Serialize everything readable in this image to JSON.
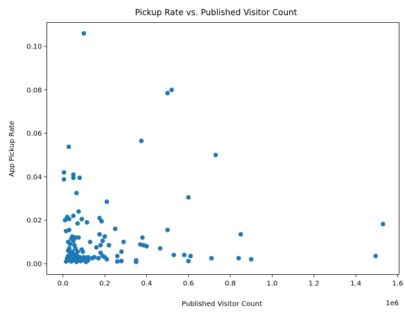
{
  "chart_data": {
    "type": "scatter",
    "title": "Pickup Rate vs. Published Visitor Count",
    "xlabel": "Published Visitor Count",
    "ylabel": "App Pickup Rate",
    "x_offset_label": "1e6",
    "xlim": [
      -0.077,
      1.607
    ],
    "ylim": [
      -0.005,
      0.111
    ],
    "xticks": [
      "0.0",
      "0.2",
      "0.4",
      "0.6",
      "0.8",
      "1.0",
      "1.2",
      "1.4",
      "1.6"
    ],
    "xtick_values": [
      0.0,
      0.2,
      0.4,
      0.6,
      0.8,
      1.0,
      1.2,
      1.4,
      1.6
    ],
    "yticks": [
      "0.00",
      "0.02",
      "0.04",
      "0.06",
      "0.08",
      "0.10"
    ],
    "ytick_values": [
      0.0,
      0.02,
      0.04,
      0.06,
      0.08,
      0.1
    ],
    "grid": false,
    "marker_color": "#1f77b4",
    "series": [
      {
        "points": [
          [
            0.1,
            0.106
          ],
          [
            0.5,
            0.0785
          ],
          [
            0.52,
            0.08
          ],
          [
            0.375,
            0.0565
          ],
          [
            0.028,
            0.0538
          ],
          [
            0.73,
            0.05
          ],
          [
            0.005,
            0.042
          ],
          [
            0.05,
            0.041
          ],
          [
            0.005,
            0.0388
          ],
          [
            0.05,
            0.0395
          ],
          [
            0.08,
            0.0395
          ],
          [
            0.065,
            0.0325
          ],
          [
            0.6,
            0.0305
          ],
          [
            0.21,
            0.0285
          ],
          [
            0.075,
            0.024
          ],
          [
            0.05,
            0.022
          ],
          [
            0.02,
            0.0215
          ],
          [
            0.01,
            0.02
          ],
          [
            0.03,
            0.0205
          ],
          [
            0.09,
            0.0205
          ],
          [
            0.175,
            0.021
          ],
          [
            0.185,
            0.0195
          ],
          [
            0.115,
            0.019
          ],
          [
            0.07,
            0.0185
          ],
          [
            1.53,
            0.0182
          ],
          [
            0.25,
            0.016
          ],
          [
            0.03,
            0.0155
          ],
          [
            0.5,
            0.0155
          ],
          [
            0.015,
            0.015
          ],
          [
            0.175,
            0.0135
          ],
          [
            0.85,
            0.0135
          ],
          [
            0.045,
            0.0125
          ],
          [
            0.06,
            0.012
          ],
          [
            0.075,
            0.012
          ],
          [
            0.38,
            0.012
          ],
          [
            0.04,
            0.0115
          ],
          [
            0.2,
            0.0125
          ],
          [
            0.025,
            0.01
          ],
          [
            0.05,
            0.0105
          ],
          [
            0.13,
            0.01
          ],
          [
            0.19,
            0.0105
          ],
          [
            0.29,
            0.01
          ],
          [
            0.035,
            0.009
          ],
          [
            0.055,
            0.0085
          ],
          [
            0.18,
            0.0085
          ],
          [
            0.22,
            0.0085
          ],
          [
            0.37,
            0.0088
          ],
          [
            0.385,
            0.0085
          ],
          [
            0.4,
            0.008
          ],
          [
            0.03,
            0.007
          ],
          [
            0.06,
            0.007
          ],
          [
            0.09,
            0.0065
          ],
          [
            0.16,
            0.0075
          ],
          [
            0.465,
            0.007
          ],
          [
            0.025,
            0.006
          ],
          [
            0.045,
            0.0055
          ],
          [
            0.07,
            0.0055
          ],
          [
            0.095,
            0.0055
          ],
          [
            0.28,
            0.0055
          ],
          [
            0.18,
            0.005
          ],
          [
            0.035,
            0.005
          ],
          [
            0.05,
            0.0045
          ],
          [
            0.065,
            0.004
          ],
          [
            0.53,
            0.004
          ],
          [
            0.58,
            0.004
          ],
          [
            0.61,
            0.0035
          ],
          [
            0.26,
            0.0035
          ],
          [
            0.025,
            0.0035
          ],
          [
            1.495,
            0.0035
          ],
          [
            0.04,
            0.003
          ],
          [
            0.06,
            0.003
          ],
          [
            0.08,
            0.003
          ],
          [
            0.1,
            0.003
          ],
          [
            0.12,
            0.003
          ],
          [
            0.15,
            0.003
          ],
          [
            0.19,
            0.0035
          ],
          [
            0.2,
            0.003
          ],
          [
            0.71,
            0.0025
          ],
          [
            0.84,
            0.0025
          ],
          [
            0.9,
            0.002
          ],
          [
            0.02,
            0.0025
          ],
          [
            0.045,
            0.0025
          ],
          [
            0.07,
            0.002
          ],
          [
            0.105,
            0.002
          ],
          [
            0.14,
            0.0025
          ],
          [
            0.17,
            0.0025
          ],
          [
            0.21,
            0.002
          ],
          [
            0.03,
            0.0015
          ],
          [
            0.055,
            0.0015
          ],
          [
            0.09,
            0.0015
          ],
          [
            0.12,
            0.0015
          ],
          [
            0.26,
            0.001
          ],
          [
            0.28,
            0.0012
          ],
          [
            0.35,
            0.0015
          ],
          [
            0.6,
            0.0012
          ],
          [
            0.015,
            0.001
          ],
          [
            0.04,
            0.001
          ],
          [
            0.065,
            0.0008
          ],
          [
            0.35,
            0.0008
          ],
          [
            0.11,
            0.0008
          ],
          [
            0.085,
            0.0012
          ],
          [
            0.075,
            0.0025
          ],
          [
            0.055,
            0.002
          ],
          [
            0.04,
            0.004
          ]
        ]
      }
    ]
  }
}
